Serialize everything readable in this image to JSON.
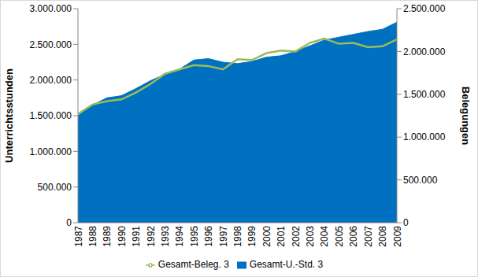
{
  "chart_data": {
    "type": "area",
    "x_label": null,
    "y_label": "Unterrichtsstunden",
    "y2_label": "Belegungen",
    "categories": [
      "1987",
      "1988",
      "1989",
      "1990",
      "1991",
      "1992",
      "1993",
      "1994",
      "1995",
      "1996",
      "1997",
      "1998",
      "1999",
      "2000",
      "2001",
      "2002",
      "2003",
      "2004",
      "2005",
      "2006",
      "2007",
      "2008",
      "2009"
    ],
    "series": [
      {
        "name": "Gesamt-U.-Std. 3",
        "type": "area",
        "color": "#0070c0",
        "values": [
          1500000,
          1650000,
          1750000,
          1780000,
          1880000,
          1990000,
          2080000,
          2150000,
          2280000,
          2300000,
          2250000,
          2230000,
          2260000,
          2320000,
          2340000,
          2400000,
          2480000,
          2560000,
          2600000,
          2640000,
          2680000,
          2710000,
          2810000
        ]
      },
      {
        "name": "Gesamt-Beleg. 3",
        "type": "line",
        "axis": "y2",
        "color": "#9bbb59",
        "values": [
          1270000,
          1380000,
          1420000,
          1440000,
          1520000,
          1620000,
          1740000,
          1790000,
          1840000,
          1830000,
          1790000,
          1910000,
          1900000,
          1980000,
          2010000,
          2000000,
          2100000,
          2150000,
          2090000,
          2100000,
          2050000,
          2060000,
          2140000
        ]
      }
    ],
    "ylim": [
      0,
      3000000
    ],
    "yticks": [
      0,
      {
        "value": 500000,
        "label": "500.000"
      },
      {
        "value": 1000000,
        "label": "1.000.000"
      },
      {
        "value": 1500000,
        "label": "1.500.000"
      },
      {
        "value": 2000000,
        "label": "2.000.000"
      },
      {
        "value": 2500000,
        "label": "2.500.000"
      },
      {
        "value": 3000000,
        "label": "3.000.000"
      }
    ],
    "y2lim": [
      0,
      2500000
    ],
    "y2ticks": [
      0,
      {
        "value": 500000,
        "label": "500.000"
      },
      {
        "value": 1000000,
        "label": "1.000.000"
      },
      {
        "value": 1500000,
        "label": "1.500.000"
      },
      {
        "value": 2000000,
        "label": "2.000.000"
      },
      {
        "value": 2500000,
        "label": "2.500.000"
      }
    ],
    "grid": false,
    "legend": "bottom"
  }
}
